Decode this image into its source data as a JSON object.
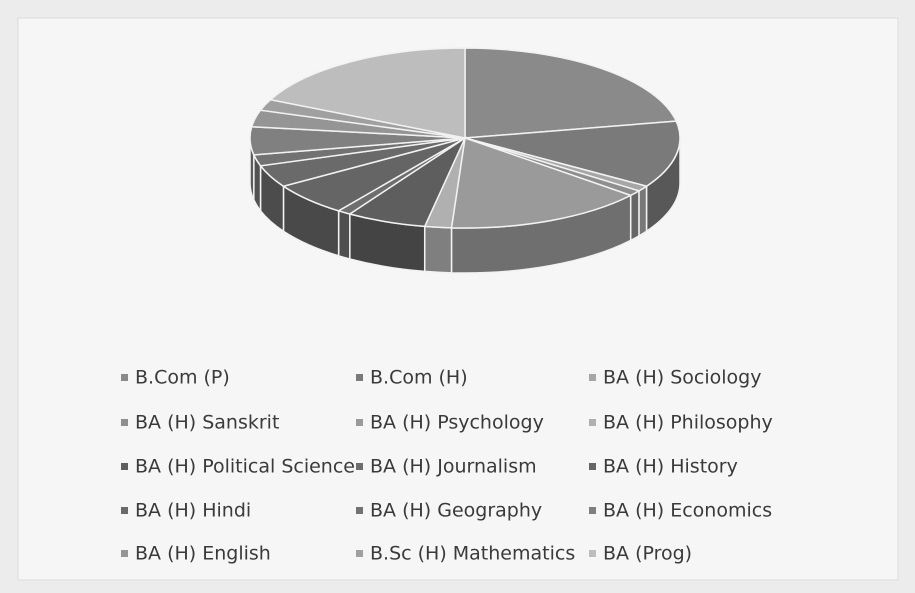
{
  "chart_data": {
    "type": "pie",
    "categories": [
      "B.Com (P)",
      "B.Com (H)",
      "BA (H) Sociology",
      "BA (H) Sanskrit",
      "BA (H) Psychology",
      "BA (H) Philosophy",
      "BA (H) Political Science",
      "BA (H) Journalism",
      "BA (H) History",
      "BA (H) Hindi",
      "BA (H) Geography",
      "BA (H) Economics",
      "BA (H) English",
      "B.Sc (H) Mathematics",
      "BA (Prog)"
    ],
    "values": [
      22,
      12,
      1,
      1,
      15,
      2,
      6,
      1,
      6,
      4,
      2,
      5,
      3,
      2,
      18
    ],
    "colors": [
      "#8a8a8a",
      "#7a7a7a",
      "#a6a6a6",
      "#8f8f8f",
      "#9a9a9a",
      "#b0b0b0",
      "#5e5e5e",
      "#6e6e6e",
      "#656565",
      "#6a6a6a",
      "#727272",
      "#808080",
      "#959595",
      "#a0a0a0",
      "#bdbdbd"
    ]
  }
}
